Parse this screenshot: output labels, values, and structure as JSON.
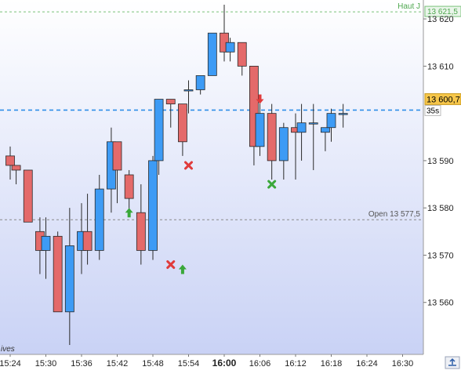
{
  "chart_data": {
    "type": "candlestick",
    "title": "",
    "xlabel": "",
    "ylabel": "",
    "ylim": [
      13549,
      13624
    ],
    "x_ticks": [
      "15:24",
      "15:30",
      "15:36",
      "15:42",
      "15:48",
      "15:54",
      "16:00",
      "16:06",
      "16:12",
      "16:18",
      "16:24",
      "16:30"
    ],
    "y_ticks": [
      "13 560",
      "13 570",
      "13 580",
      "13 590",
      "13 610",
      "13 620"
    ],
    "grid": false,
    "colors": {
      "up": "#3d9bf5",
      "down": "#e46a6a",
      "outline": "#2a2a2a",
      "buy": "#3aa83a",
      "sell": "#e03b3b",
      "plot_bg_top": "#ffffff",
      "plot_bg_bottom": "#c9d2f5"
    },
    "candles": [
      {
        "t": "15:24",
        "o": 13591,
        "h": 13593,
        "l": 13586,
        "c": 13589
      },
      {
        "t": "15:25",
        "o": 13589,
        "h": 13589,
        "l": 13585,
        "c": 13588
      },
      {
        "t": "15:27",
        "o": 13588,
        "h": 13588,
        "l": 13577,
        "c": 13577
      },
      {
        "t": "15:29",
        "o": 13575,
        "h": 13578,
        "l": 13566,
        "c": 13571
      },
      {
        "t": "15:30",
        "o": 13571,
        "h": 13578,
        "l": 13565,
        "c": 13574
      },
      {
        "t": "15:32",
        "o": 13574,
        "h": 13575,
        "l": 13558,
        "c": 13558
      },
      {
        "t": "15:34",
        "o": 13558,
        "h": 13580,
        "l": 13551,
        "c": 13572
      },
      {
        "t": "15:36",
        "o": 13571,
        "h": 13581,
        "l": 13566,
        "c": 13575
      },
      {
        "t": "15:37",
        "o": 13575,
        "h": 13583,
        "l": 13568,
        "c": 13571
      },
      {
        "t": "15:39",
        "o": 13571,
        "h": 13587,
        "l": 13569,
        "c": 13584
      },
      {
        "t": "15:41",
        "o": 13584,
        "h": 13597,
        "l": 13579,
        "c": 13594
      },
      {
        "t": "15:42",
        "o": 13594,
        "h": 13594,
        "l": 13581,
        "c": 13588
      },
      {
        "t": "15:44",
        "o": 13587,
        "h": 13588,
        "l": 13579,
        "c": 13582
      },
      {
        "t": "15:46",
        "o": 13579,
        "h": 13585,
        "l": 13568,
        "c": 13571
      },
      {
        "t": "15:48",
        "o": 13571,
        "h": 13591,
        "l": 13569,
        "c": 13590
      },
      {
        "t": "15:49",
        "o": 13590,
        "h": 13603,
        "l": 13587,
        "c": 13603
      },
      {
        "t": "15:51",
        "o": 13603,
        "h": 13603,
        "l": 13597,
        "c": 13602
      },
      {
        "t": "15:53",
        "o": 13602,
        "h": 13602,
        "l": 13591,
        "c": 13594
      },
      {
        "t": "15:54",
        "o": 13605,
        "h": 13607,
        "l": 13600,
        "c": 13605
      },
      {
        "t": "15:56",
        "o": 13605,
        "h": 13608,
        "l": 13604,
        "c": 13608
      },
      {
        "t": "15:58",
        "o": 13608,
        "h": 13617,
        "l": 13608,
        "c": 13617
      },
      {
        "t": "16:00",
        "o": 13617,
        "h": 13623,
        "l": 13611,
        "c": 13613
      },
      {
        "t": "16:01",
        "o": 13613,
        "h": 13616,
        "l": 13611,
        "c": 13615
      },
      {
        "t": "16:03",
        "o": 13615,
        "h": 13615,
        "l": 13608,
        "c": 13610
      },
      {
        "t": "16:05",
        "o": 13610,
        "h": 13610,
        "l": 13589,
        "c": 13593
      },
      {
        "t": "16:06",
        "o": 13593,
        "h": 13604,
        "l": 13591,
        "c": 13600
      },
      {
        "t": "16:08",
        "o": 13600,
        "h": 13602,
        "l": 13586,
        "c": 13590
      },
      {
        "t": "16:10",
        "o": 13590,
        "h": 13598,
        "l": 13586,
        "c": 13597
      },
      {
        "t": "16:12",
        "o": 13597,
        "h": 13600,
        "l": 13586,
        "c": 13596
      },
      {
        "t": "16:13",
        "o": 13596,
        "h": 13602,
        "l": 13590,
        "c": 13598
      },
      {
        "t": "16:15",
        "o": 13598,
        "h": 13602,
        "l": 13588,
        "c": 13598
      },
      {
        "t": "16:17",
        "o": 13596,
        "h": 13597,
        "l": 13592,
        "c": 13597
      },
      {
        "t": "16:18",
        "o": 13597,
        "h": 13601,
        "l": 13594,
        "c": 13600
      },
      {
        "t": "16:20",
        "o": 13600,
        "h": 13602,
        "l": 13597,
        "c": 13600
      }
    ],
    "reference_lines": [
      {
        "label": "Haut J",
        "value": 13621.5,
        "value_label": "13 621,5",
        "color": "#7ac27a",
        "style": "dashed"
      },
      {
        "label": "Open 13 577,5",
        "value": 13577.5,
        "color": "#8a8a8a",
        "style": "dashed"
      },
      {
        "label": "",
        "value": 13600.7,
        "color": "#2f8ee8",
        "style": "dashed"
      }
    ],
    "price_tag": {
      "value": 13600.7,
      "label": "13 600,7",
      "color": "#f6c64a"
    },
    "countdown_label": "35s",
    "signals": [
      {
        "t": "15:44",
        "type": "buy-arrow",
        "price": 13579
      },
      {
        "t": "15:51",
        "type": "sell-cross",
        "price": 13568
      },
      {
        "t": "15:53",
        "type": "buy-arrow",
        "price": 13567
      },
      {
        "t": "15:54",
        "type": "sell-cross",
        "price": 13589
      },
      {
        "t": "16:06",
        "type": "sell-arrow",
        "price": 13603
      },
      {
        "t": "16:08",
        "type": "buy-cross",
        "price": 13585
      }
    ],
    "corner_text": "ives"
  }
}
